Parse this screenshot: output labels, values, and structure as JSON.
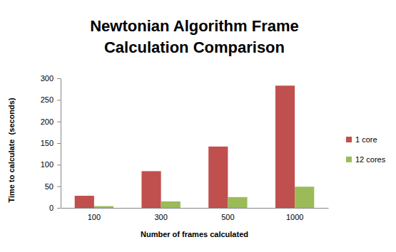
{
  "chart_data": {
    "type": "bar",
    "title": "Newtonian Algorithm Frame Calculation Comparison",
    "x_label": "Number of frames calculated",
    "y_label": "Time to calculate  (seconds)",
    "categories": [
      "100",
      "300",
      "500",
      "1000"
    ],
    "series": [
      {
        "name": "1 core",
        "color": "#c0504d",
        "values": [
          28,
          85,
          142,
          283
        ]
      },
      {
        "name": "12 cores",
        "color": "#9bbb59",
        "values": [
          4,
          15,
          25,
          49
        ]
      }
    ],
    "ylim": [
      0,
      300
    ],
    "yticks": [
      0,
      50,
      100,
      150,
      200,
      250,
      300
    ],
    "grid": false,
    "legend": "right"
  }
}
